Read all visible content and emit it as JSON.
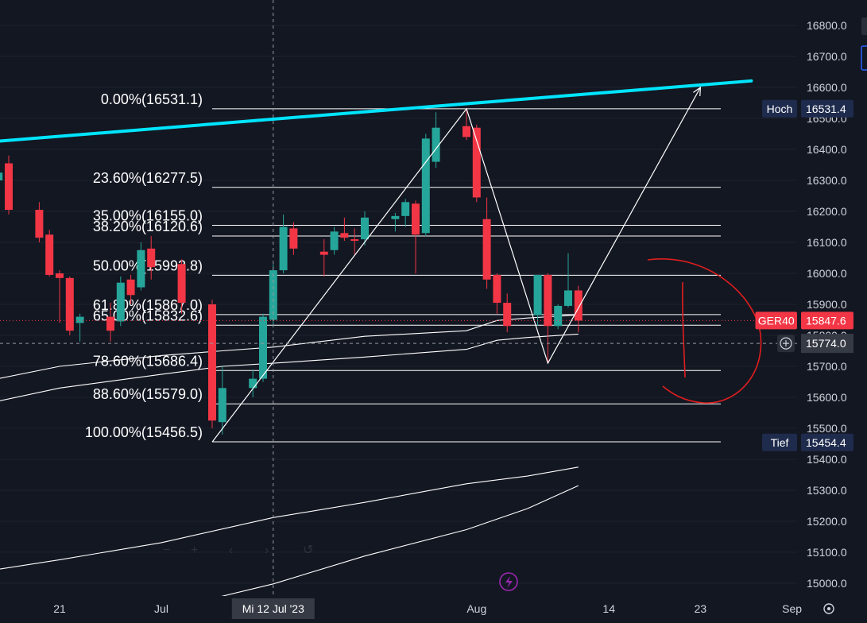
{
  "chart_data": {
    "type": "candlestick",
    "symbol": "GER40",
    "y_range": [
      14950,
      16860
    ],
    "price_axis_ticks": [
      16800,
      16700,
      16600,
      16500,
      16400,
      16300,
      16200,
      16100,
      16000,
      15900,
      15800,
      15700,
      15600,
      15500,
      15400,
      15300,
      15200,
      15100,
      15000
    ],
    "price_axis_tick_labels": [
      "16800.0",
      "16700.0",
      "16600.0",
      "16500.0",
      "16400.0",
      "16300.0",
      "16200.0",
      "16100.0",
      "16000.0",
      "15900.0",
      "15800.0",
      "15700.0",
      "15600.0",
      "15500.0",
      "15400.0",
      "15300.0",
      "15200.0",
      "15100.0",
      "15000.0"
    ],
    "time_axis_labels": [
      {
        "label": "21",
        "date": "2023-06-21"
      },
      {
        "label": "Jul",
        "date": "2023-07-01"
      },
      {
        "label": "Aug",
        "date": "2023-08-01"
      },
      {
        "label": "14",
        "date": "2023-08-14"
      },
      {
        "label": "23",
        "date": "2023-08-23"
      },
      {
        "label": "Sep",
        "date": "2023-09-01"
      }
    ],
    "crosshair": {
      "date_label": "Mi 12 Jul '23",
      "price": 15774.0,
      "price_label": "15774.0"
    },
    "candles": [
      {
        "date": "2023-06-14",
        "open": 16280,
        "high": 16320,
        "low": 16180,
        "close": 16250
      },
      {
        "date": "2023-06-15",
        "open": 16300,
        "high": 16430,
        "low": 16230,
        "close": 16325
      },
      {
        "date": "2023-06-16",
        "open": 16355,
        "high": 16380,
        "low": 16190,
        "close": 16205
      },
      {
        "date": "2023-06-19",
        "open": 16205,
        "high": 16230,
        "low": 16100,
        "close": 16115
      },
      {
        "date": "2023-06-20",
        "open": 16125,
        "high": 16140,
        "low": 15990,
        "close": 15995
      },
      {
        "date": "2023-06-21",
        "open": 16000,
        "high": 16010,
        "low": 15840,
        "close": 15985
      },
      {
        "date": "2023-06-22",
        "open": 15985,
        "high": 15990,
        "low": 15800,
        "close": 15815
      },
      {
        "date": "2023-06-23",
        "open": 15840,
        "high": 15870,
        "low": 15780,
        "close": 15860
      },
      {
        "date": "2023-06-26",
        "open": 15860,
        "high": 15905,
        "low": 15780,
        "close": 15815
      },
      {
        "date": "2023-06-27",
        "open": 15845,
        "high": 15990,
        "low": 15830,
        "close": 15970
      },
      {
        "date": "2023-06-28",
        "open": 15980,
        "high": 15995,
        "low": 15900,
        "close": 15930
      },
      {
        "date": "2023-06-29",
        "open": 15955,
        "high": 16100,
        "low": 15945,
        "close": 16075
      },
      {
        "date": "2023-06-30",
        "open": 16080,
        "high": 16120,
        "low": 15980,
        "close": 16020
      },
      {
        "date": "2023-07-03",
        "open": 16030,
        "high": 16045,
        "low": 15870,
        "close": 15905
      },
      {
        "date": "2023-07-06",
        "open": 15900,
        "high": 15915,
        "low": 15500,
        "close": 15525
      },
      {
        "date": "2023-07-07",
        "open": 15520,
        "high": 15700,
        "low": 15480,
        "close": 15630
      },
      {
        "date": "2023-07-10",
        "open": 15630,
        "high": 15690,
        "low": 15600,
        "close": 15660
      },
      {
        "date": "2023-07-11",
        "open": 15660,
        "high": 15870,
        "low": 15650,
        "close": 15860
      },
      {
        "date": "2023-07-12",
        "open": 15850,
        "high": 16030,
        "low": 15830,
        "close": 16010
      },
      {
        "date": "2023-07-13",
        "open": 16010,
        "high": 16190,
        "low": 16000,
        "close": 16150
      },
      {
        "date": "2023-07-14",
        "open": 16145,
        "high": 16165,
        "low": 16060,
        "close": 16080
      },
      {
        "date": "2023-07-17",
        "open": 16070,
        "high": 16110,
        "low": 15990,
        "close": 16060
      },
      {
        "date": "2023-07-18",
        "open": 16075,
        "high": 16150,
        "low": 16060,
        "close": 16135
      },
      {
        "date": "2023-07-19",
        "open": 16130,
        "high": 16180,
        "low": 16105,
        "close": 16115
      },
      {
        "date": "2023-07-20",
        "open": 16110,
        "high": 16145,
        "low": 16060,
        "close": 16105
      },
      {
        "date": "2023-07-21",
        "open": 16110,
        "high": 16200,
        "low": 16090,
        "close": 16180
      },
      {
        "date": "2023-07-24",
        "open": 16175,
        "high": 16195,
        "low": 16135,
        "close": 16185
      },
      {
        "date": "2023-07-25",
        "open": 16185,
        "high": 16240,
        "low": 16150,
        "close": 16230
      },
      {
        "date": "2023-07-26",
        "open": 16225,
        "high": 16235,
        "low": 16000,
        "close": 16125
      },
      {
        "date": "2023-07-27",
        "open": 16130,
        "high": 16450,
        "low": 16120,
        "close": 16435
      },
      {
        "date": "2023-07-28",
        "open": 16360,
        "high": 16520,
        "low": 16340,
        "close": 16470
      },
      {
        "date": "2023-07-31",
        "open": 16475,
        "high": 16531,
        "low": 16430,
        "close": 16440
      },
      {
        "date": "2023-08-01",
        "open": 16470,
        "high": 16480,
        "low": 16230,
        "close": 16245
      },
      {
        "date": "2023-08-02",
        "open": 16175,
        "high": 16245,
        "low": 15950,
        "close": 15980
      },
      {
        "date": "2023-08-03",
        "open": 15995,
        "high": 16000,
        "low": 15870,
        "close": 15905
      },
      {
        "date": "2023-08-04",
        "open": 15905,
        "high": 15935,
        "low": 15810,
        "close": 15830
      },
      {
        "date": "2023-08-07",
        "open": 15865,
        "high": 15995,
        "low": 15830,
        "close": 15995
      },
      {
        "date": "2023-08-08",
        "open": 15995,
        "high": 16000,
        "low": 15710,
        "close": 15830
      },
      {
        "date": "2023-08-09",
        "open": 15830,
        "high": 15900,
        "low": 15820,
        "close": 15895
      },
      {
        "date": "2023-08-10",
        "open": 15895,
        "high": 16065,
        "low": 15890,
        "close": 15945
      },
      {
        "date": "2023-08-11",
        "open": 15945,
        "high": 15960,
        "low": 15810,
        "close": 15847.6
      }
    ],
    "fibonacci": {
      "levels": [
        {
          "label": "0.00%(16531.1)",
          "price": 16531.1
        },
        {
          "label": "23.60%(16277.5)",
          "price": 16277.5
        },
        {
          "label": "35.00%(16155.0)",
          "price": 16155.0
        },
        {
          "label": "38.20%(16120.6)",
          "price": 16120.6
        },
        {
          "label": "50.00%(15993.8)",
          "price": 15993.8
        },
        {
          "label": "61.80%(15867.0)",
          "price": 15867.0
        },
        {
          "label": "65.00%(15832.6)",
          "price": 15832.6
        },
        {
          "label": "78.60%(15686.4)",
          "price": 15686.4
        },
        {
          "label": "88.60%(15579.0)",
          "price": 15579.0
        },
        {
          "label": "100.00%(15456.5)",
          "price": 15456.5
        }
      ],
      "line_color": "#ffffff",
      "start_date": "2023-07-06",
      "end_date": "2023-08-25"
    },
    "trendline": {
      "color": "#00e5ff",
      "points": [
        {
          "date": "2023-06-11",
          "price": 16416
        },
        {
          "date": "2023-08-28",
          "price": 16621
        }
      ]
    },
    "zigzag": {
      "color": "#ffffff",
      "points": [
        {
          "date": "2023-07-06",
          "price": 15456
        },
        {
          "date": "2023-07-31",
          "price": 16531
        },
        {
          "date": "2023-08-08",
          "price": 15710
        },
        {
          "date": "2023-08-23",
          "price": 16600
        }
      ]
    },
    "moving_averages": [
      {
        "name": "",
        "color": "#ffffff",
        "points": [
          [
            "2023-06-11",
            15634
          ],
          [
            "2023-06-21",
            15700
          ],
          [
            "2023-07-01",
            15735
          ],
          [
            "2023-07-07",
            15750
          ],
          [
            "2023-07-12",
            15762
          ],
          [
            "2023-07-21",
            15797
          ],
          [
            "2023-07-31",
            15815
          ],
          [
            "2023-08-03",
            15848
          ],
          [
            "2023-08-06",
            15856
          ],
          [
            "2023-08-11",
            15866
          ]
        ]
      },
      {
        "name": "",
        "color": "#ffffff",
        "points": [
          [
            "2023-06-11",
            15560
          ],
          [
            "2023-06-21",
            15630
          ],
          [
            "2023-07-01",
            15674
          ],
          [
            "2023-07-07",
            15700
          ],
          [
            "2023-07-12",
            15710
          ],
          [
            "2023-07-21",
            15730
          ],
          [
            "2023-07-31",
            15755
          ],
          [
            "2023-08-03",
            15784
          ],
          [
            "2023-08-06",
            15793
          ],
          [
            "2023-08-11",
            15804
          ]
        ]
      },
      {
        "name": "",
        "color": "#ffffff",
        "points": [
          [
            "2023-06-11",
            15025
          ],
          [
            "2023-06-21",
            15076
          ],
          [
            "2023-07-01",
            15131
          ],
          [
            "2023-07-12",
            15212
          ],
          [
            "2023-07-21",
            15261
          ],
          [
            "2023-07-31",
            15321
          ],
          [
            "2023-08-06",
            15346
          ],
          [
            "2023-08-11",
            15375
          ]
        ]
      },
      {
        "name": "",
        "color": "#ffffff",
        "points": [
          [
            "2023-07-01",
            14911
          ],
          [
            "2023-07-12",
            14998
          ],
          [
            "2023-07-21",
            15088
          ],
          [
            "2023-07-31",
            15173
          ],
          [
            "2023-08-06",
            15241
          ],
          [
            "2023-08-11",
            15315
          ]
        ]
      }
    ],
    "price_tags": [
      {
        "name": "Hoch",
        "value": "16531.4",
        "price": 16531.4,
        "bg": "#1e2b4d"
      },
      {
        "name": "GER40",
        "value": "15847.6",
        "price": 15847.6,
        "bg": "#f23645"
      },
      {
        "name": "Tief",
        "value": "15454.4",
        "price": 15454.4,
        "bg": "#1e2b4d"
      }
    ],
    "colors": {
      "background": "#131722",
      "up": "#26a69a",
      "down": "#f23645",
      "annotation": "#e01e1e",
      "grid": "#1e222d"
    }
  }
}
